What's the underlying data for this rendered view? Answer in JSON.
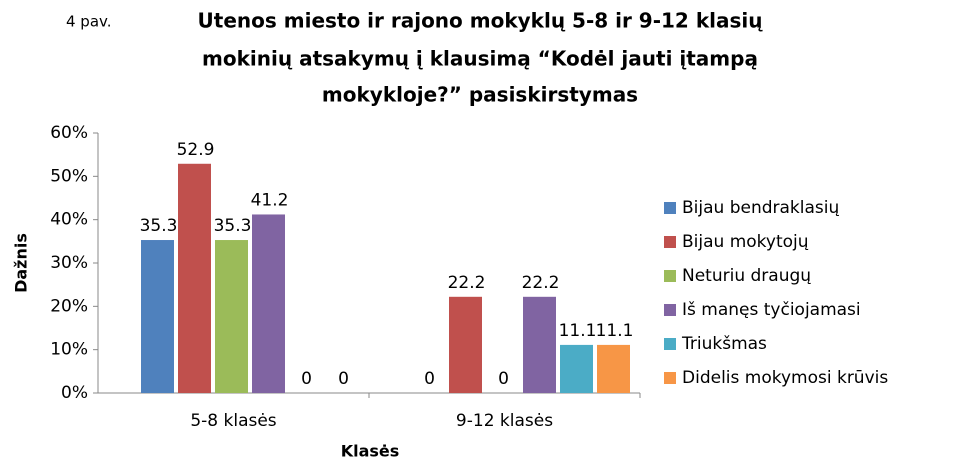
{
  "chart_data": {
    "type": "bar",
    "figure_label": "4 pav.",
    "title_lines": [
      "Utenos  miesto ir rajono mokyklų 5-8 ir 9-12 klasių",
      "mokinių atsakymų į klausimą “Kodėl jauti įtampą",
      "mokykloje?” pasiskirstymas"
    ],
    "x_label": "Klasės",
    "y_label": "Dažnis",
    "categories": [
      "5-8 klasės",
      "9-12 klasės"
    ],
    "series": [
      {
        "name": "Bijau bendraklasių",
        "color": "#4f81bd",
        "values": [
          35.3,
          0
        ]
      },
      {
        "name": "Bijau mokytojų",
        "color": "#c0504d",
        "values": [
          52.9,
          22.2
        ]
      },
      {
        "name": "Neturiu draugų",
        "color": "#9bbb59",
        "values": [
          35.3,
          0
        ]
      },
      {
        "name": "Iš manęs tyčiojamasi",
        "color": "#8064a2",
        "values": [
          41.2,
          22.2
        ]
      },
      {
        "name": "Triukšmas",
        "color": "#4bacc6",
        "values": [
          0,
          11.1
        ]
      },
      {
        "name": "Didelis mokymosi krūvis",
        "color": "#f79646",
        "values": [
          0,
          11.1
        ]
      }
    ],
    "ylim": [
      0,
      60
    ],
    "yticks": [
      {
        "value": 0,
        "label": "0%"
      },
      {
        "value": 10,
        "label": "10%"
      },
      {
        "value": 20,
        "label": "20%"
      },
      {
        "value": 30,
        "label": "30%"
      },
      {
        "value": 40,
        "label": "40%"
      },
      {
        "value": 50,
        "label": "50%"
      },
      {
        "value": 60,
        "label": "60%"
      }
    ],
    "grid": false,
    "legend": "right"
  }
}
